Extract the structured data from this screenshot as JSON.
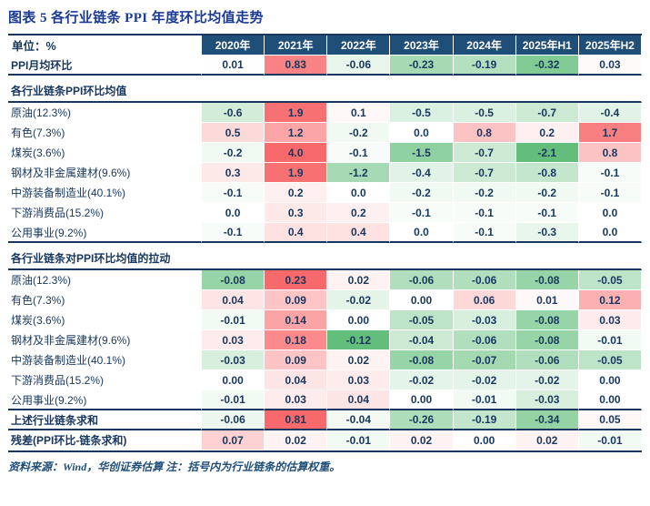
{
  "title": "图表 5  各行业链条 PPI 年度环比均值走势",
  "source_note": "资料来源：Wind，华创证券估算  注：括号内为行业链条的估算权重。",
  "colors": {
    "title_blue": "#1B3A94",
    "header_bg": "#1F4E79",
    "table_text": "#17375E",
    "heat_positive": "#F8696B",
    "heat_negative": "#63BE7B"
  },
  "chart_data": {
    "type": "heatmap",
    "title": "各行业链条 PPI 年度环比均值走势",
    "unit": "单位：%",
    "columns": [
      "2020年",
      "2021年",
      "2022年",
      "2023年",
      "2024年",
      "2025年H1",
      "2025年H2"
    ],
    "row_groups": [
      {
        "style": "ppi",
        "scale": {
          "pos": 1.0,
          "neg": -0.4
        },
        "rows": [
          {
            "label": "PPI月均环比",
            "values": [
              "0.01",
              "0.83",
              "-0.06",
              "-0.23",
              "-0.19",
              "-0.32",
              "0.03"
            ]
          }
        ]
      },
      {
        "style": "section",
        "header": "各行业链条PPI环比均值",
        "scale": {
          "pos": 2.0,
          "neg": -2.1
        },
        "rows": [
          {
            "label": "原油(12.3%)",
            "values": [
              "-0.6",
              "1.9",
              "0.1",
              "-0.5",
              "-0.5",
              "-0.7",
              "-0.4"
            ]
          },
          {
            "label": "有色(7.3%)",
            "values": [
              "0.5",
              "1.2",
              "-0.2",
              "0.0",
              "0.8",
              "0.2",
              "1.7"
            ]
          },
          {
            "label": "煤炭(3.6%)",
            "values": [
              "-0.2",
              "4.0",
              "-0.1",
              "-1.5",
              "-0.7",
              "-2.1",
              "0.8"
            ]
          },
          {
            "label": "钢材及非金属建材(9.6%)",
            "values": [
              "0.3",
              "1.9",
              "-1.2",
              "-0.4",
              "-0.7",
              "-0.8",
              "-0.1"
            ]
          },
          {
            "label": "中游装备制造业(40.1%)",
            "values": [
              "-0.1",
              "0.2",
              "0.0",
              "-0.2",
              "-0.2",
              "-0.2",
              "-0.1"
            ]
          },
          {
            "label": "下游消费品(15.2%)",
            "values": [
              "0.0",
              "0.3",
              "0.2",
              "-0.1",
              "-0.1",
              "-0.1",
              "0.0"
            ]
          },
          {
            "label": "公用事业(9.2%)",
            "values": [
              "-0.1",
              "0.4",
              "0.4",
              "0.0",
              "-0.1",
              "-0.3",
              "0.0"
            ]
          }
        ]
      },
      {
        "style": "section",
        "header": "各行业链条对PPI环比均值的拉动",
        "scale": {
          "pos": 0.23,
          "neg": -0.12
        },
        "rows": [
          {
            "label": "原油(12.3%)",
            "values": [
              "-0.08",
              "0.23",
              "0.02",
              "-0.06",
              "-0.06",
              "-0.08",
              "-0.05"
            ]
          },
          {
            "label": "有色(7.3%)",
            "values": [
              "0.04",
              "0.09",
              "-0.02",
              "0.00",
              "0.06",
              "0.01",
              "0.12"
            ]
          },
          {
            "label": "煤炭(3.6%)",
            "values": [
              "-0.01",
              "0.14",
              "0.00",
              "-0.05",
              "-0.03",
              "-0.08",
              "0.03"
            ]
          },
          {
            "label": "钢材及非金属建材(9.6%)",
            "values": [
              "0.03",
              "0.18",
              "-0.12",
              "-0.04",
              "-0.06",
              "-0.08",
              "-0.01"
            ]
          },
          {
            "label": "中游装备制造业(40.1%)",
            "values": [
              "-0.03",
              "0.09",
              "0.02",
              "-0.08",
              "-0.07",
              "-0.06",
              "-0.05"
            ]
          },
          {
            "label": "下游消费品(15.2%)",
            "values": [
              "0.00",
              "0.04",
              "0.03",
              "-0.02",
              "-0.02",
              "-0.02",
              "0.00"
            ]
          },
          {
            "label": "公用事业(9.2%)",
            "values": [
              "-0.01",
              "0.03",
              "0.04",
              "0.00",
              "-0.01",
              "-0.03",
              "0.00"
            ]
          }
        ]
      },
      {
        "style": "sum",
        "scale": {
          "pos": 0.81,
          "neg": -0.5
        },
        "rows": [
          {
            "label": "上述行业链条求和",
            "values": [
              "-0.06",
              "0.81",
              "-0.04",
              "-0.26",
              "-0.19",
              "-0.34",
              "0.05"
            ]
          }
        ]
      },
      {
        "style": "residual",
        "scale": {
          "pos": 0.23,
          "neg": -0.12
        },
        "rows": [
          {
            "label": "残差(PPI环比-链条求和)",
            "values": [
              "0.07",
              "0.02",
              "-0.01",
              "0.02",
              "0.00",
              "0.02",
              "-0.01"
            ]
          }
        ]
      }
    ]
  }
}
